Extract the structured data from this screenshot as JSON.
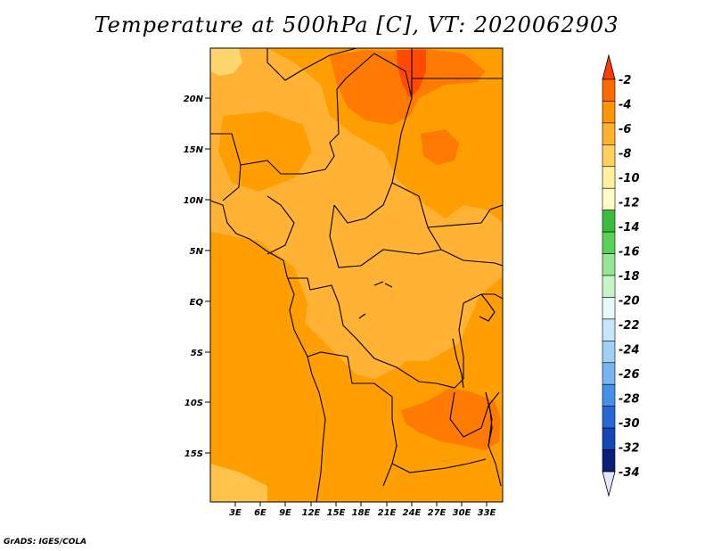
{
  "title": "Temperature at 500hPa [C], VT: 2020062903",
  "credit": "GrADS: IGES/COLA",
  "map": {
    "lat_labels": [
      "20N",
      "15N",
      "10N",
      "5N",
      "EQ",
      "5S",
      "10S",
      "15S"
    ],
    "lon_labels": [
      "3E",
      "6E",
      "9E",
      "12E",
      "15E",
      "18E",
      "21E",
      "24E",
      "27E",
      "30E",
      "33E"
    ]
  },
  "legend": {
    "labels": [
      "-2",
      "-4",
      "-6",
      "-8",
      "-10",
      "-12",
      "-14",
      "-16",
      "-18",
      "-20",
      "-22",
      "-24",
      "-26",
      "-28",
      "-30",
      "-32",
      "-34"
    ],
    "colors": [
      "#ff3c00",
      "#ff6a00",
      "#ff9600",
      "#ffb22c",
      "#ffd060",
      "#fff0a0",
      "#fffcc8",
      "#3cbc3c",
      "#5ad25a",
      "#96e696",
      "#c8f5c8",
      "#e6fafa",
      "#c8e6fa",
      "#a0d0f5",
      "#78b4f0",
      "#4690e6",
      "#2868d2",
      "#1446b4",
      "#0a1e78",
      "#e6e6fa"
    ]
  }
}
